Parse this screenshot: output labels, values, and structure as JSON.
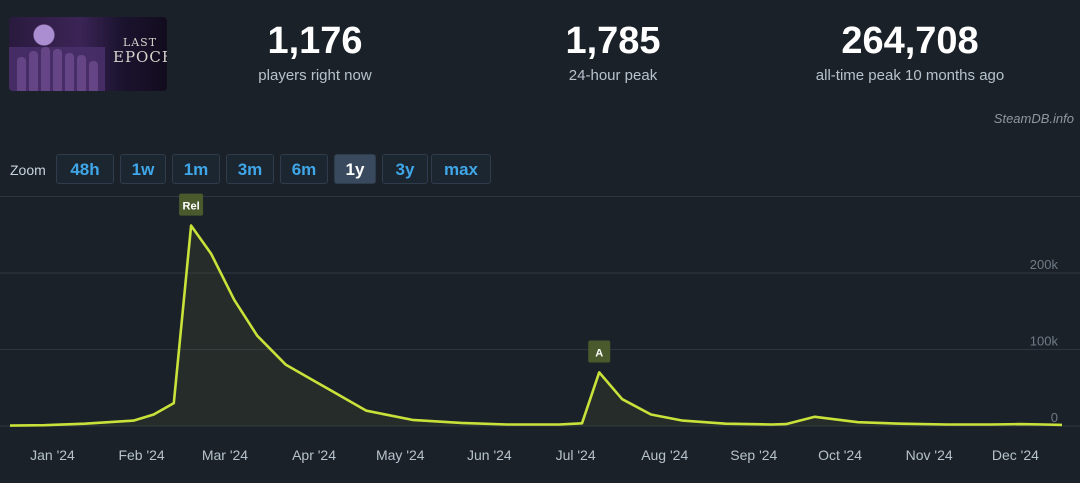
{
  "game": {
    "logo_line1": "LAST",
    "logo_line2": "EPOCH"
  },
  "stats": {
    "now_value": "1,176",
    "now_label": "players right now",
    "peak24_value": "1,785",
    "peak24_label": "24-hour peak",
    "alltime_value": "264,708",
    "alltime_label": "all-time peak 10 months ago"
  },
  "credit": "SteamDB.info",
  "zoom": {
    "label": "Zoom",
    "options": [
      "48h",
      "1w",
      "1m",
      "3m",
      "6m",
      "1y",
      "3y",
      "max"
    ],
    "selected": "1y"
  },
  "colors": {
    "line": "#c9e23a",
    "accent": "#3fa7e8",
    "annotation_bg": "#4a5a2c"
  },
  "chart_data": {
    "type": "line",
    "series": [
      {
        "x": [
          "2023-12-20",
          "2024-01-01",
          "2024-01-15",
          "2024-02-01",
          "2024-02-08",
          "2024-02-15",
          "2024-02-21",
          "2024-02-28",
          "2024-03-07",
          "2024-03-15",
          "2024-03-25",
          "2024-04-08",
          "2024-04-22",
          "2024-05-08",
          "2024-05-25",
          "2024-06-10",
          "2024-06-28",
          "2024-07-06",
          "2024-07-12",
          "2024-07-20",
          "2024-07-30",
          "2024-08-10",
          "2024-08-25",
          "2024-09-10",
          "2024-09-15",
          "2024-09-25",
          "2024-10-10",
          "2024-10-25",
          "2024-11-10",
          "2024-11-25",
          "2024-12-05",
          "2024-12-14",
          "2024-12-20"
        ],
        "values": [
          500,
          1000,
          3000,
          7000,
          15000,
          30000,
          262000,
          225000,
          165000,
          118000,
          80000,
          50000,
          20000,
          8000,
          4000,
          2000,
          2000,
          3500,
          70000,
          35000,
          15000,
          7000,
          3000,
          2000,
          2500,
          12000,
          5000,
          3000,
          2000,
          2000,
          2500,
          2000,
          1500
        ]
      }
    ],
    "x_ticks": [
      "Jan '24",
      "Feb '24",
      "Mar '24",
      "Apr '24",
      "May '24",
      "Jun '24",
      "Jul '24",
      "Aug '24",
      "Sep '24",
      "Oct '24",
      "Nov '24",
      "Dec '24"
    ],
    "y_ticks": [
      "0",
      "100k",
      "200k"
    ],
    "ylim": [
      0,
      300000
    ],
    "grid": true,
    "annotations": [
      {
        "label": "Rel",
        "x": "2024-02-21"
      },
      {
        "label": "A",
        "x": "2024-07-12"
      }
    ]
  }
}
